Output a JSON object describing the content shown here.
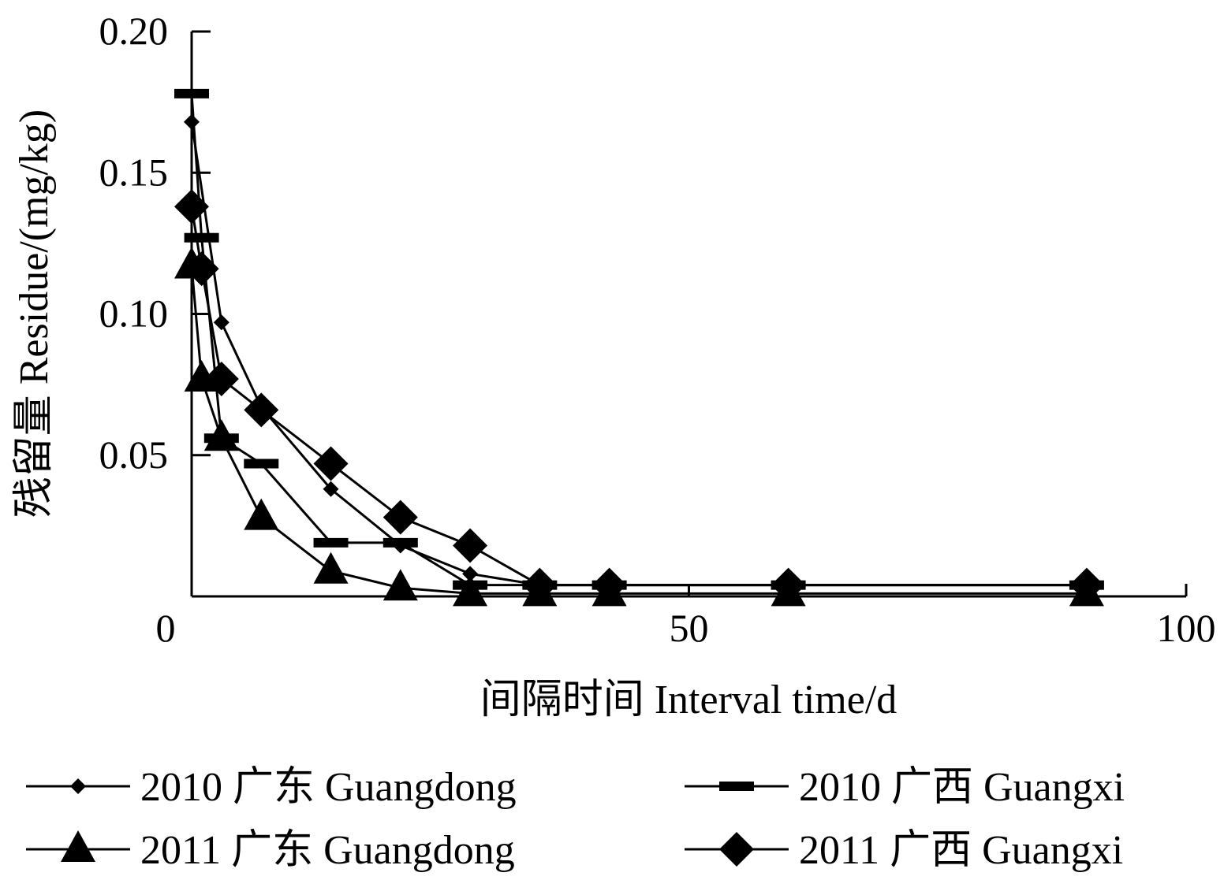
{
  "chart_data": {
    "type": "line",
    "title": "",
    "xlabel": "间隔时间 Interval time/d",
    "ylabel": "残留量 Residue/(mg/kg)",
    "xlim": [
      0,
      100
    ],
    "ylim": [
      0,
      0.2
    ],
    "x_ticks": [
      0,
      50,
      100
    ],
    "x_tick_labels": [
      "0",
      "50",
      "100"
    ],
    "y_ticks": [
      0.05,
      0.1,
      0.15,
      0.2
    ],
    "y_tick_labels": [
      "0.05",
      "0.10",
      "0.15",
      "0.20"
    ],
    "grid": false,
    "legend_position": "bottom",
    "series": [
      {
        "name": "2010 广东 Guangdong",
        "marker": "small-diamond",
        "x": [
          0,
          3,
          7,
          14,
          21,
          28,
          35,
          42,
          60,
          90
        ],
        "y": [
          0.168,
          0.097,
          0.067,
          0.038,
          0.018,
          0.008,
          0.004,
          0.004,
          0.004,
          0.004
        ]
      },
      {
        "name": "2010 广西 Guangxi",
        "marker": "dash",
        "x": [
          0,
          1,
          3,
          7,
          14,
          21,
          28,
          35,
          42,
          60,
          90
        ],
        "y": [
          0.178,
          0.127,
          0.056,
          0.047,
          0.019,
          0.019,
          0.004,
          0.004,
          0.004,
          0.004,
          0.004
        ]
      },
      {
        "name": "2011 广东 Guangdong",
        "marker": "triangle",
        "x": [
          0,
          1,
          3,
          7,
          14,
          21,
          28,
          35,
          42,
          60,
          90
        ],
        "y": [
          0.117,
          0.077,
          0.056,
          0.028,
          0.009,
          0.003,
          0.001,
          0.001,
          0.001,
          0.001,
          0.001
        ]
      },
      {
        "name": "2011 广西 Guangxi",
        "marker": "diamond",
        "x": [
          0,
          1,
          3,
          7,
          14,
          21,
          28,
          35,
          42,
          60,
          90
        ],
        "y": [
          0.138,
          0.116,
          0.077,
          0.066,
          0.047,
          0.028,
          0.018,
          0.004,
          0.004,
          0.004,
          0.004
        ]
      }
    ]
  }
}
